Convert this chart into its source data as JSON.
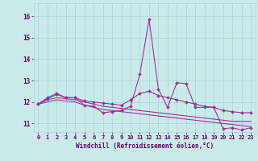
{
  "background_color": "#caeaea",
  "grid_color": "#aad4d4",
  "line_color": "#993399",
  "marker_color": "#993399",
  "xlabel": "Windchill (Refroidissement éolien,°C)",
  "xlabel_color": "#660066",
  "tick_color": "#660066",
  "xlim": [
    -0.5,
    23.5
  ],
  "ylim": [
    10.6,
    16.6
  ],
  "yticks": [
    11,
    12,
    13,
    14,
    15,
    16
  ],
  "xticks": [
    0,
    1,
    2,
    3,
    4,
    5,
    6,
    7,
    8,
    9,
    10,
    11,
    12,
    13,
    14,
    15,
    16,
    17,
    18,
    19,
    20,
    21,
    22,
    23
  ],
  "x": [
    0,
    1,
    2,
    3,
    4,
    5,
    6,
    7,
    8,
    9,
    10,
    11,
    12,
    13,
    14,
    15,
    16,
    17,
    18,
    19,
    20,
    21,
    22,
    23
  ],
  "series": [
    [
      11.9,
      12.2,
      12.4,
      12.2,
      12.2,
      11.85,
      11.8,
      11.5,
      11.55,
      11.6,
      11.8,
      13.3,
      15.85,
      12.6,
      11.75,
      12.9,
      12.85,
      11.75,
      11.75,
      11.75,
      10.75,
      10.8,
      10.7,
      10.8
    ],
    [
      11.9,
      12.15,
      12.35,
      12.2,
      12.2,
      12.05,
      12.0,
      11.95,
      11.9,
      11.85,
      12.1,
      12.4,
      12.5,
      12.3,
      12.2,
      12.1,
      12.0,
      11.9,
      11.8,
      11.75,
      11.6,
      11.55,
      11.5,
      11.5
    ],
    [
      11.9,
      12.1,
      12.2,
      12.15,
      12.1,
      12.0,
      11.9,
      11.8,
      11.75,
      11.7,
      11.65,
      11.6,
      11.55,
      11.5,
      11.45,
      11.4,
      11.35,
      11.3,
      11.25,
      11.2,
      11.15,
      11.1,
      11.1,
      11.1
    ],
    [
      11.9,
      12.0,
      12.1,
      12.05,
      12.0,
      11.85,
      11.75,
      11.65,
      11.6,
      11.55,
      11.5,
      11.45,
      11.4,
      11.35,
      11.3,
      11.25,
      11.2,
      11.15,
      11.1,
      11.05,
      11.0,
      10.95,
      10.9,
      10.85
    ]
  ],
  "show_markers": [
    true,
    true,
    false,
    false
  ],
  "marker_style": "D",
  "marker_size": 2.0,
  "linewidth": 0.8,
  "tick_fontsize": 5.0,
  "xlabel_fontsize": 5.5
}
